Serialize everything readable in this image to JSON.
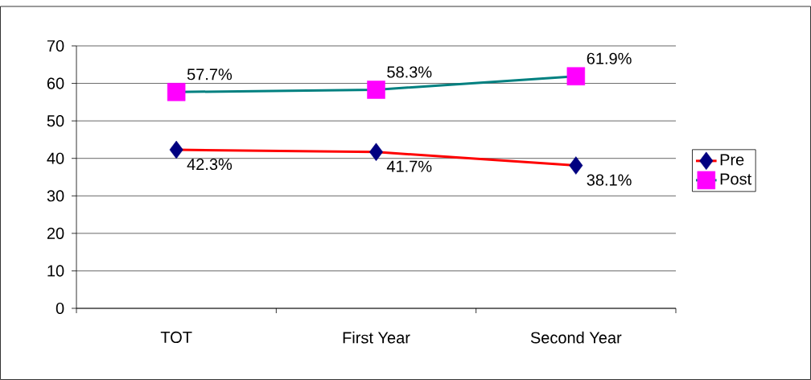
{
  "chart_data": {
    "type": "line",
    "categories": [
      "TOT",
      "First Year",
      "Second Year"
    ],
    "series": [
      {
        "name": "Pre",
        "color": "#ff0000",
        "colors": [
          "#000080",
          "#000080",
          "#000080"
        ],
        "marker": "diamond",
        "values": [
          42.3,
          41.7,
          38.1
        ],
        "value_labels": [
          "42.3%",
          "41.7%",
          "38.1%"
        ]
      },
      {
        "name": "Post",
        "color": "#008080",
        "colors": [
          "#ff00ff",
          "#ff00ff",
          "#ff00ff"
        ],
        "marker": "square",
        "values": [
          57.7,
          58.3,
          61.9
        ],
        "value_labels": [
          "57.7%",
          "58.3%",
          "61.9%"
        ]
      }
    ],
    "ylim": [
      0,
      70
    ],
    "yticks": [
      0,
      10,
      20,
      30,
      40,
      50,
      60,
      70
    ],
    "grid": "y",
    "legend": "right",
    "line_style": "solid"
  }
}
